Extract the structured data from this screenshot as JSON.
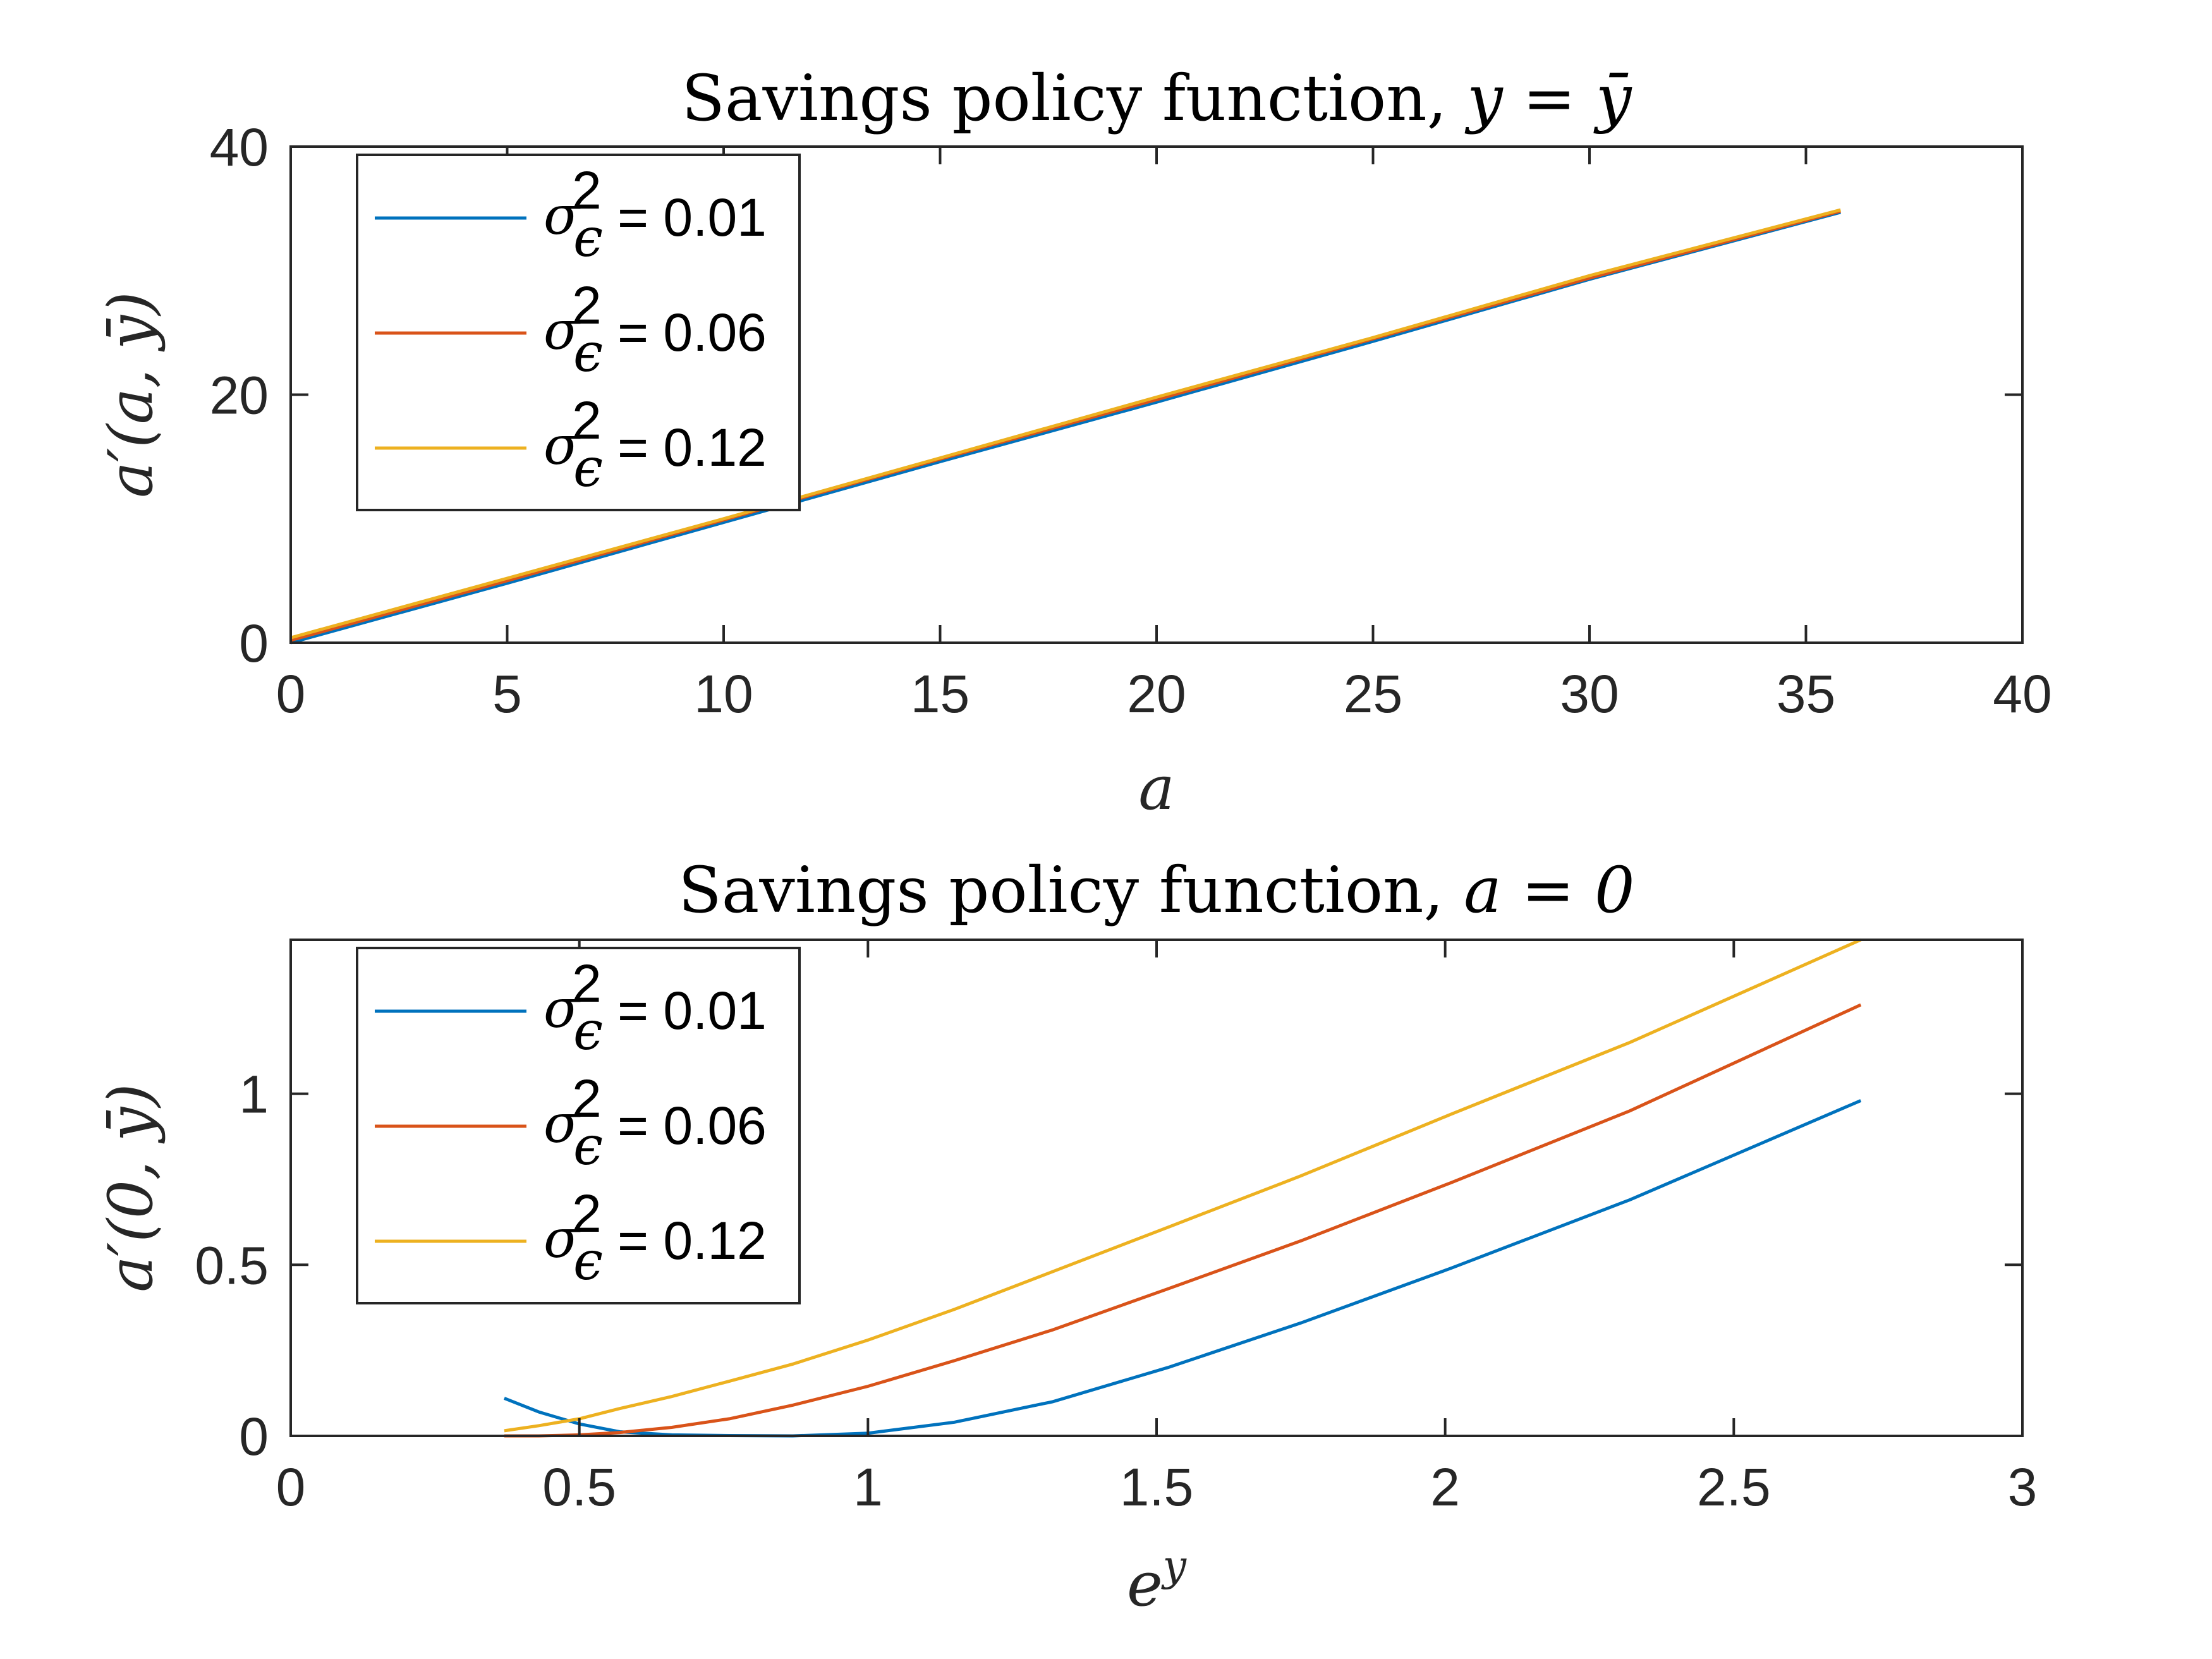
{
  "chart_data": [
    {
      "type": "line",
      "title": {
        "text": "Savings policy function, ",
        "math": "y = ȳ"
      },
      "xlabel": "a",
      "ylabel": "a′(a, ȳ)",
      "xlim": [
        0,
        40
      ],
      "ylim": [
        0,
        40
      ],
      "xticks": [
        "0",
        "5",
        "10",
        "15",
        "20",
        "25",
        "30",
        "35",
        "40"
      ],
      "yticks": [
        "0",
        "20",
        "40"
      ],
      "grid": false,
      "legend_position": "top-left",
      "series": [
        {
          "name": "= 0.01",
          "color": "#0072BD",
          "x": [
            0,
            5,
            10,
            15,
            20,
            25,
            30,
            35.8
          ],
          "y": [
            0.0,
            4.8,
            9.7,
            14.6,
            19.4,
            24.3,
            29.3,
            34.7
          ]
        },
        {
          "name": "= 0.06",
          "color": "#D95319",
          "x": [
            0,
            5,
            10,
            15,
            20,
            25,
            30,
            35.8
          ],
          "y": [
            0.2,
            5.0,
            9.9,
            14.8,
            19.6,
            24.5,
            29.4,
            34.8
          ]
        },
        {
          "name": "= 0.12",
          "color": "#EDB120",
          "x": [
            0,
            5,
            10,
            15,
            20,
            25,
            30,
            35.8
          ],
          "y": [
            0.4,
            5.2,
            10.0,
            14.9,
            19.8,
            24.6,
            29.6,
            34.9
          ]
        }
      ]
    },
    {
      "type": "line",
      "title": {
        "text": "Savings policy function, ",
        "math": "a = 0"
      },
      "xlabel": "e^y",
      "ylabel": "a′(0, ȳ)",
      "xlim": [
        0,
        3
      ],
      "ylim": [
        0,
        1.45
      ],
      "xticks": [
        "0",
        "0.5",
        "1",
        "1.5",
        "2",
        "2.5",
        "3"
      ],
      "yticks": [
        "0",
        "0.5",
        "1"
      ],
      "grid": false,
      "legend_position": "top-left",
      "series": [
        {
          "name": "= 0.01",
          "color": "#0072BD",
          "x": [
            0.37,
            0.43,
            0.5,
            0.57,
            0.66,
            0.76,
            0.87,
            1.0,
            1.15,
            1.32,
            1.52,
            1.75,
            2.01,
            2.32,
            2.72
          ],
          "y": [
            0.11,
            0.07,
            0.035,
            0.012,
            0.003,
            0.001,
            0.0,
            0.008,
            0.04,
            0.1,
            0.2,
            0.33,
            0.49,
            0.69,
            0.98
          ]
        },
        {
          "name": "= 0.06",
          "color": "#D95319",
          "x": [
            0.37,
            0.43,
            0.5,
            0.57,
            0.66,
            0.76,
            0.87,
            1.0,
            1.15,
            1.32,
            1.52,
            1.75,
            2.01,
            2.32,
            2.72
          ],
          "y": [
            0.0,
            0.0,
            0.003,
            0.01,
            0.025,
            0.05,
            0.09,
            0.145,
            0.22,
            0.31,
            0.43,
            0.57,
            0.74,
            0.95,
            1.26
          ]
        },
        {
          "name": "= 0.12",
          "color": "#EDB120",
          "x": [
            0.37,
            0.43,
            0.5,
            0.57,
            0.66,
            0.76,
            0.87,
            1.0,
            1.15,
            1.32,
            1.52,
            1.75,
            2.01,
            2.32,
            2.72
          ],
          "y": [
            0.015,
            0.03,
            0.05,
            0.08,
            0.115,
            0.16,
            0.21,
            0.28,
            0.37,
            0.48,
            0.61,
            0.76,
            0.94,
            1.15,
            1.45
          ]
        }
      ]
    }
  ]
}
